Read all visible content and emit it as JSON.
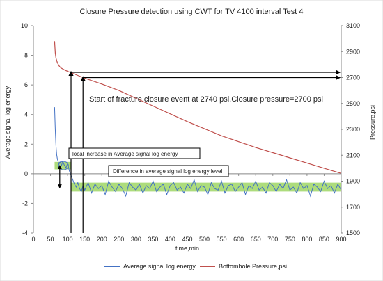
{
  "chart_data": {
    "type": "line",
    "title": "Closure Pressure detection using CWT for TV 4100 interval Test 4",
    "xlabel": "time,min",
    "ylabel_left": "Average signal log  energy",
    "ylabel_right": "Pressure,psi",
    "xlim": [
      0,
      900
    ],
    "xticks": [
      0,
      50,
      100,
      150,
      200,
      250,
      300,
      350,
      400,
      450,
      500,
      550,
      600,
      650,
      700,
      750,
      800,
      850,
      900
    ],
    "ylim_left": [
      -4,
      10
    ],
    "yticks_left": [
      -4,
      -2,
      0,
      2,
      4,
      6,
      8,
      10
    ],
    "ylim_right": [
      1500,
      3100
    ],
    "yticks_right": [
      1500,
      1700,
      1900,
      2100,
      2300,
      2500,
      2700,
      2900,
      3100
    ],
    "grid": false,
    "legend_position": "bottom",
    "series": [
      {
        "name": "Average signal log  energy",
        "axis": "left",
        "color": "#4472c4",
        "x": [
          62,
          64,
          66,
          68,
          70,
          74,
          78,
          82,
          86,
          90,
          95,
          100,
          105,
          110,
          115,
          120,
          125,
          130,
          135,
          140,
          145,
          150,
          160,
          170,
          180,
          190,
          200,
          210,
          220,
          230,
          240,
          250,
          260,
          270,
          280,
          290,
          300,
          310,
          320,
          330,
          340,
          350,
          360,
          370,
          380,
          390,
          400,
          410,
          420,
          430,
          440,
          450,
          460,
          470,
          480,
          490,
          500,
          510,
          520,
          530,
          540,
          550,
          560,
          570,
          580,
          590,
          600,
          610,
          620,
          630,
          640,
          650,
          660,
          670,
          680,
          690,
          700,
          710,
          720,
          730,
          740,
          750,
          760,
          770,
          780,
          790,
          800,
          810,
          820,
          830,
          840,
          850,
          860,
          870,
          880,
          890,
          900
        ],
        "y": [
          4.5,
          3.0,
          1.9,
          1.3,
          1.0,
          0.7,
          0.8,
          0.55,
          0.85,
          0.6,
          0.4,
          0.7,
          0.2,
          -0.1,
          -0.4,
          -0.7,
          -0.9,
          -0.6,
          -1.0,
          -1.2,
          -0.8,
          -1.1,
          -0.6,
          -1.3,
          -0.7,
          -1.0,
          -0.8,
          -1.4,
          -0.5,
          -0.9,
          -1.2,
          -0.7,
          -1.0,
          -1.5,
          -0.6,
          -0.9,
          -1.1,
          -0.7,
          -1.3,
          -0.8,
          -1.0,
          -0.5,
          -1.2,
          -0.9,
          -0.7,
          -1.4,
          -0.8,
          -0.6,
          -1.1,
          -0.9,
          -1.3,
          -0.7,
          -1.0,
          -0.4,
          -1.2,
          -0.8,
          -0.9,
          -1.4,
          -0.6,
          -1.0,
          -1.1,
          -0.5,
          -1.3,
          -0.8,
          -0.7,
          -1.2,
          -0.9,
          -0.6,
          -1.4,
          -0.8,
          -1.0,
          -0.5,
          -1.1,
          -0.9,
          -1.3,
          -0.6,
          -0.8,
          -1.2,
          -0.7,
          -1.0,
          -0.4,
          -1.1,
          -0.9,
          -1.3,
          -0.6,
          -1.0,
          -0.8,
          -1.5,
          -0.7,
          -0.9,
          -1.2,
          -0.5,
          -1.0,
          -0.8,
          -1.3,
          -0.7,
          -1.1
        ]
      },
      {
        "name": "Bottomhole Pressure,psi",
        "axis": "right",
        "color": "#c0504d",
        "x": [
          62,
          64,
          66,
          70,
          75,
          80,
          90,
          100,
          110,
          120,
          130,
          150,
          200,
          250,
          300,
          350,
          400,
          450,
          500,
          550,
          600,
          650,
          700,
          750,
          800,
          850,
          900
        ],
        "y": [
          2980,
          2890,
          2850,
          2815,
          2790,
          2775,
          2760,
          2748,
          2738,
          2727,
          2716,
          2695,
          2650,
          2600,
          2540,
          2480,
          2420,
          2360,
          2305,
          2250,
          2205,
          2160,
          2120,
          2080,
          2040,
          2000,
          1960
        ]
      }
    ],
    "bands": [
      {
        "axis": "left",
        "x_start": 62,
        "x_end": 110,
        "y_low": 0.3,
        "y_high": 0.8,
        "color": "#92d050"
      },
      {
        "axis": "left",
        "x_start": 110,
        "x_end": 900,
        "y_low": -1.2,
        "y_high": -0.6,
        "color": "#92d050"
      }
    ],
    "annotations": {
      "closure_event": "Start of fracture closure event at 2740 psi,Closure pressure=2700 psi",
      "local_increase": "local increase in Average signal log  energy",
      "difference": "Difference in average signal log  energy level"
    },
    "markers": {
      "event_time": 110,
      "closure_time": 145,
      "event_pressure": 2740,
      "closure_pressure": 2700
    }
  }
}
